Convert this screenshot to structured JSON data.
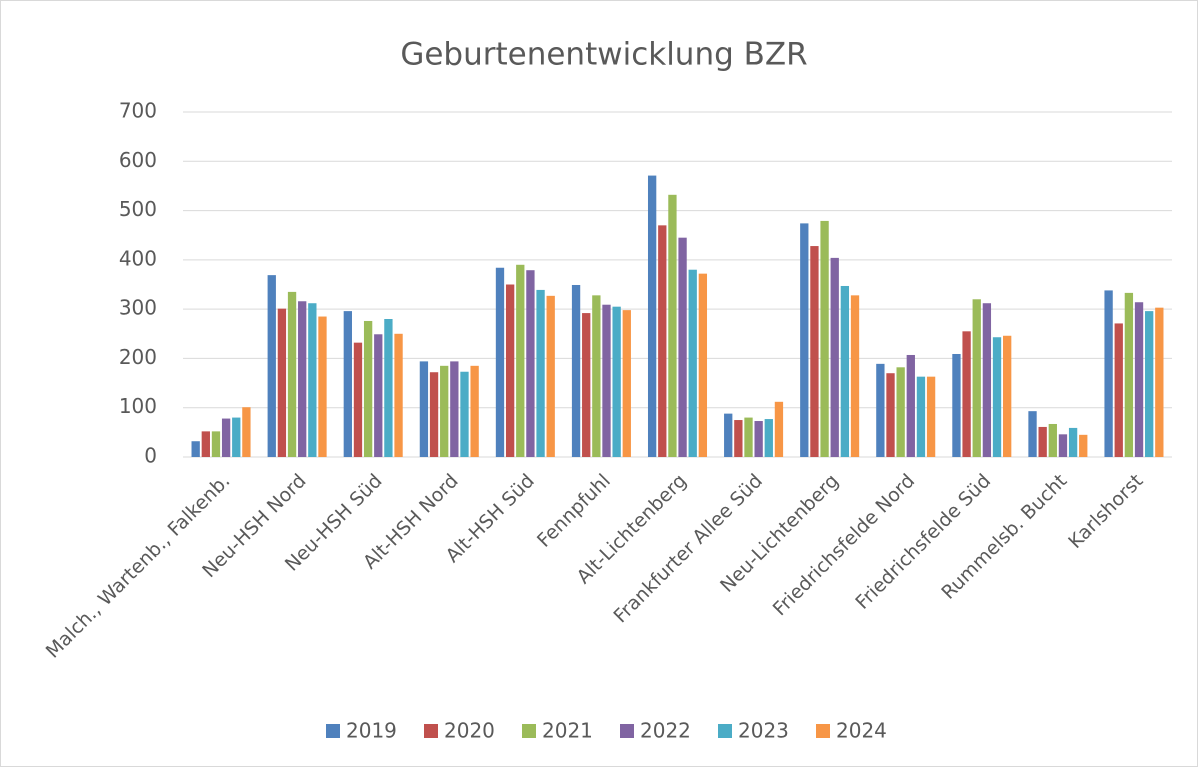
{
  "chart_data": {
    "type": "bar",
    "title": "Geburtenentwicklung BZR",
    "categories": [
      "Malch., Wartenb., Falkenb.",
      "Neu-HSH Nord",
      "Neu-HSH Süd",
      "Alt-HSH Nord",
      "Alt-HSH Süd",
      "Fennpfuhl",
      "Alt-Lichtenberg",
      "Frankfurter Allee Süd",
      "Neu-Lichtenberg",
      "Friedrichsfelde Nord",
      "Friedrichsfelde Süd",
      "Rummelsb. Bucht",
      "Karlshorst"
    ],
    "series": [
      {
        "name": "2019",
        "color": "#4f81bd",
        "values": [
          32,
          369,
          296,
          194,
          384,
          349,
          571,
          88,
          474,
          189,
          209,
          93,
          338
        ]
      },
      {
        "name": "2020",
        "color": "#c0504d",
        "values": [
          52,
          301,
          232,
          172,
          350,
          292,
          470,
          75,
          428,
          170,
          255,
          61,
          271
        ]
      },
      {
        "name": "2021",
        "color": "#9bbb59",
        "values": [
          52,
          335,
          276,
          185,
          390,
          328,
          532,
          80,
          479,
          182,
          320,
          67,
          333
        ]
      },
      {
        "name": "2022",
        "color": "#8064a2",
        "values": [
          78,
          316,
          249,
          194,
          379,
          309,
          445,
          73,
          404,
          207,
          312,
          46,
          314
        ]
      },
      {
        "name": "2023",
        "color": "#4bacc6",
        "values": [
          80,
          312,
          280,
          173,
          339,
          305,
          380,
          77,
          347,
          163,
          243,
          59,
          296
        ]
      },
      {
        "name": "2024",
        "color": "#f79646",
        "values": [
          101,
          285,
          250,
          185,
          327,
          298,
          372,
          112,
          328,
          163,
          246,
          45,
          303
        ]
      }
    ],
    "ylim": [
      0,
      700
    ],
    "yticks": [
      0,
      100,
      200,
      300,
      400,
      500,
      600,
      700
    ],
    "grid": true,
    "legend": "bottom"
  }
}
